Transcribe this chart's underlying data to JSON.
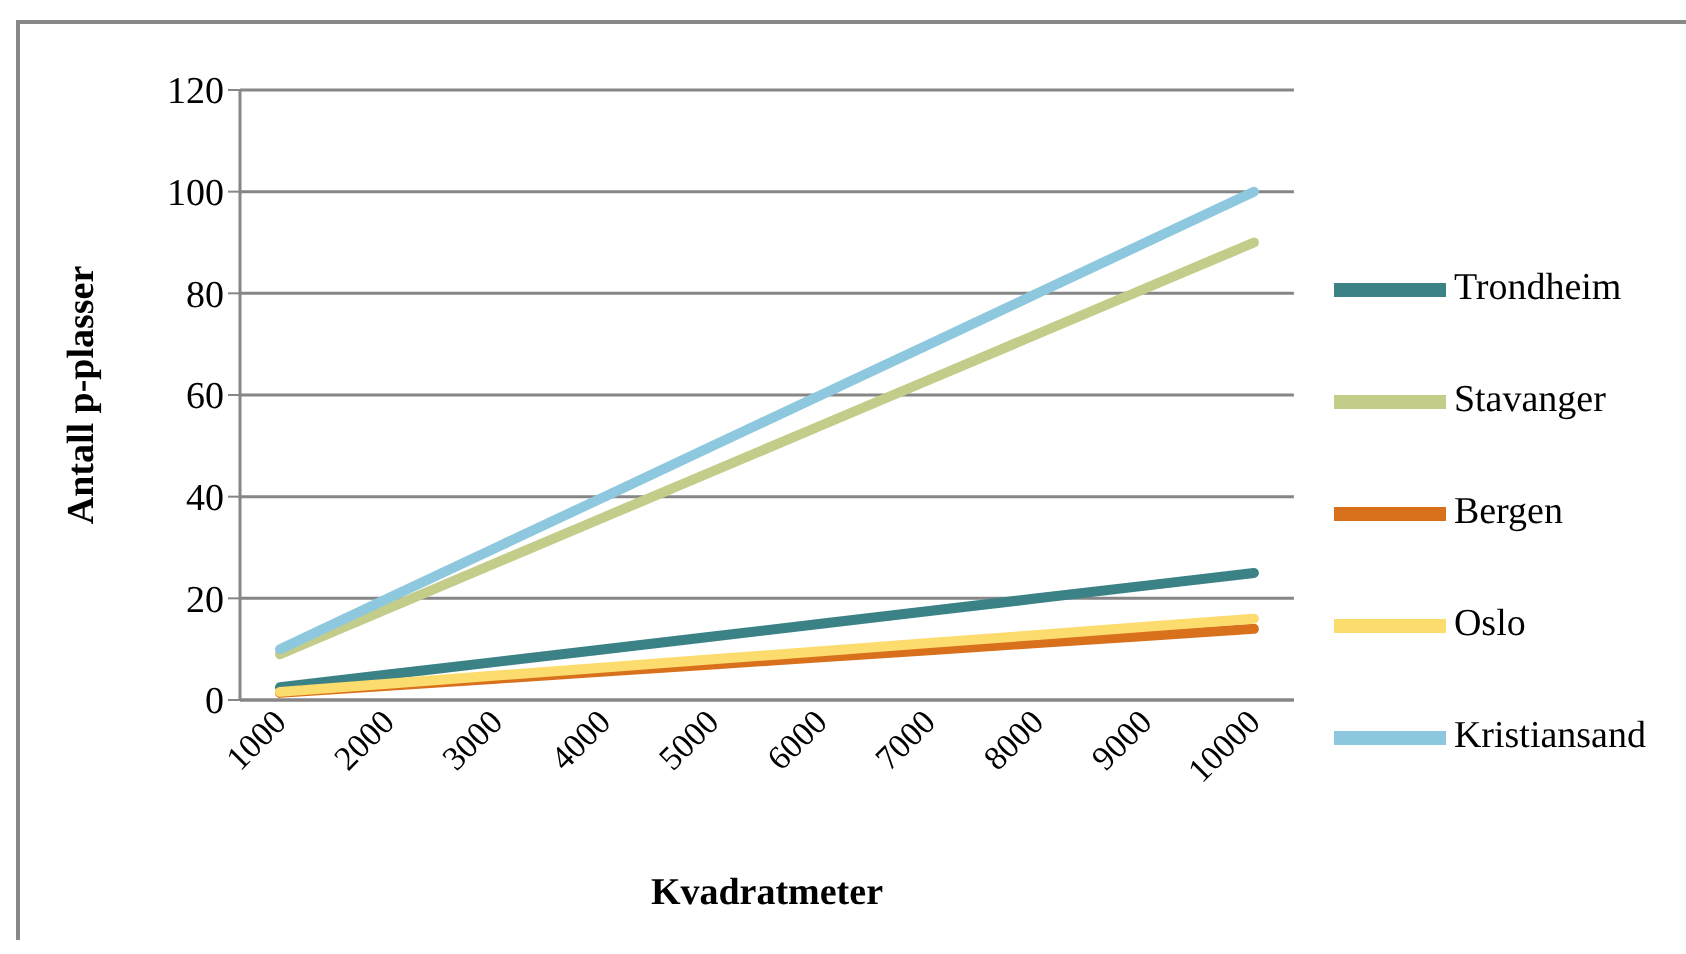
{
  "chart_data": {
    "type": "line",
    "xlabel": "Kvadratmeter",
    "ylabel": "Antall p-plasser",
    "categories": [
      "1000",
      "2000",
      "3000",
      "4000",
      "5000",
      "6000",
      "7000",
      "8000",
      "9000",
      "10000"
    ],
    "series": [
      {
        "name": "Trondheim",
        "color": "#3b8286",
        "values": [
          2.5,
          5,
          7.5,
          10,
          12.5,
          15,
          17.5,
          20,
          22.5,
          25
        ]
      },
      {
        "name": "Stavanger",
        "color": "#c4cc8a",
        "values": [
          9,
          18,
          27,
          36,
          45,
          54,
          63,
          72,
          81,
          90
        ]
      },
      {
        "name": "Bergen",
        "color": "#d9711c",
        "values": [
          1.4,
          2.8,
          4.2,
          5.6,
          7,
          8.4,
          9.8,
          11.2,
          12.6,
          14
        ]
      },
      {
        "name": "Oslo",
        "color": "#fcdc6c",
        "values": [
          1.6,
          3.2,
          4.8,
          6.4,
          8,
          9.6,
          11.2,
          12.8,
          14.4,
          16
        ]
      },
      {
        "name": "Kristiansand",
        "color": "#8ec8de",
        "values": [
          10,
          20,
          30,
          40,
          50,
          60,
          70,
          80,
          90,
          100
        ]
      }
    ],
    "ylim": [
      0,
      120
    ],
    "yticks": [
      0,
      20,
      40,
      60,
      80,
      100,
      120
    ],
    "grid": "y",
    "legend": "right",
    "marker": "none",
    "line_style": "solid"
  }
}
